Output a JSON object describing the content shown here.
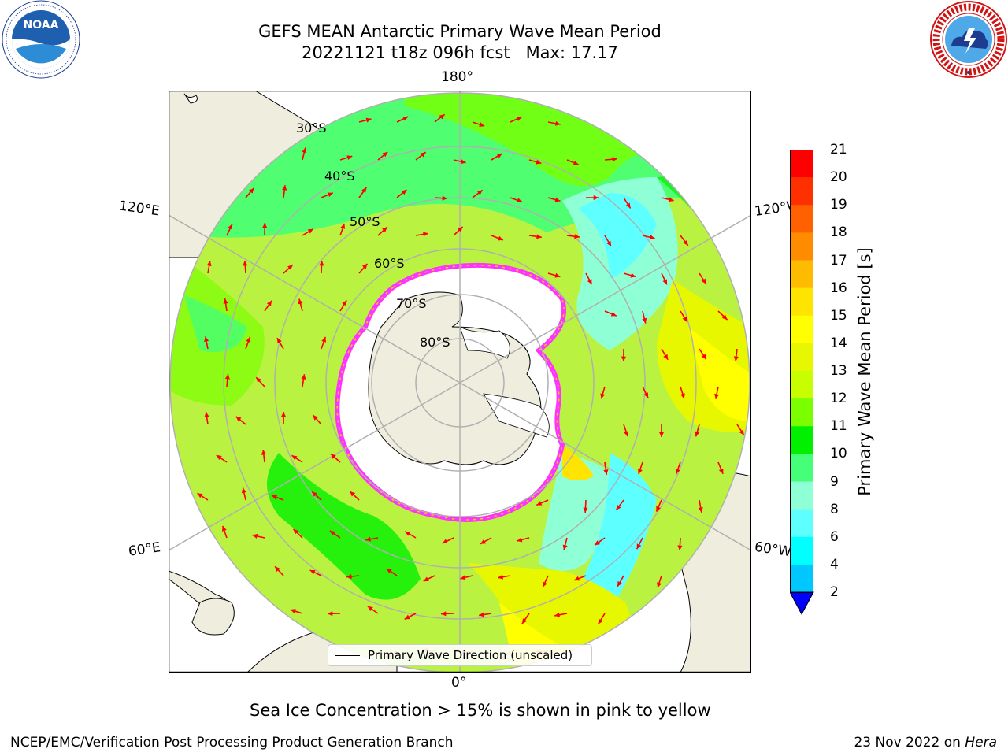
{
  "title": {
    "line1": "GEFS MEAN Antarctic Primary Wave Mean Period",
    "line2": "20221121 t18z 096h fcst   Max: 17.17"
  },
  "logos": {
    "left": {
      "name": "NOAA",
      "text": "NOAA",
      "ring_text": "NATIONAL OCEANIC AND ATMOSPHERIC ADMINISTRATION · U.S. DEPARTMENT OF COMMERCE"
    },
    "right": {
      "name": "National Weather Service",
      "ring_text": "NATIONAL WEATHER SERVICE"
    }
  },
  "map": {
    "projection": "south polar stereographic",
    "lon_labels": {
      "top": "180°",
      "bottom": "0°",
      "left_upper": "120°E",
      "left_lower": "60°E",
      "right_upper": "120°W",
      "right_lower": "60°W"
    },
    "lat_labels": [
      "30°S",
      "40°S",
      "50°S",
      "60°S",
      "70°S",
      "80°S"
    ],
    "legend": "Primary Wave Direction (unscaled)",
    "arrow_color": "#ff0000",
    "land_color": "#efedde",
    "sea_ice_color": "#ffffff",
    "sea_ice_edge_colors": [
      "#ff33ff",
      "#ff99cc",
      "#ffcc00"
    ]
  },
  "colorbar": {
    "label": "Primary Wave Mean Period [s]",
    "ticks": [
      "21",
      "20",
      "19",
      "18",
      "17",
      "16",
      "15",
      "14",
      "13",
      "12",
      "11",
      "10",
      "9",
      "8",
      "6",
      "4",
      "2"
    ],
    "colors": [
      "#ff0000",
      "#ff3000",
      "#ff6000",
      "#ff8c00",
      "#ffbb00",
      "#ffe400",
      "#ffff00",
      "#e7f700",
      "#c8ff00",
      "#7bff00",
      "#00f000",
      "#44ff77",
      "#8fffd6",
      "#5effff",
      "#00ffff",
      "#00c8ff",
      "#0072ff"
    ],
    "under_color": "#0000ff"
  },
  "notes": {
    "sea_ice": "Sea Ice Concentration > 15% is shown in pink to yellow",
    "footer_left": "NCEP/EMC/Verification Post Processing Product Generation Branch",
    "footer_right_date": "23 Nov 2022 on ",
    "footer_right_host": "Hera"
  }
}
